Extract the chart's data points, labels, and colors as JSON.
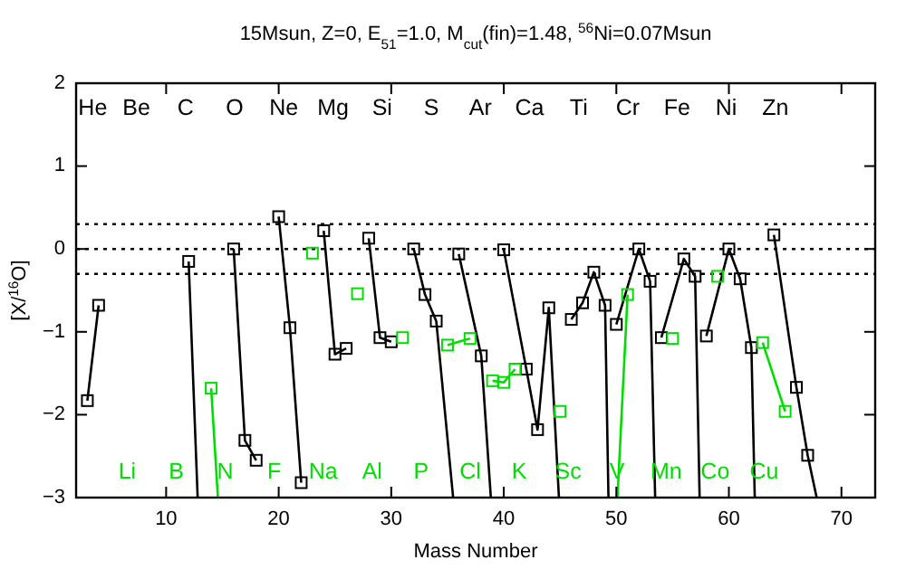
{
  "chart_data": {
    "type": "line",
    "title": "15Msun, Z=0, E$_{51}$=1.0, M$_{cut}$(fin)=1.48, $^{56}$Ni=0.07Msun",
    "xlabel": "Mass Number",
    "ylabel": "[X/$^{16}$O]",
    "xlim": [
      2,
      73
    ],
    "xticks": [
      10,
      20,
      30,
      40,
      50,
      60,
      70
    ],
    "ylim": [
      -3,
      2
    ],
    "yticks": [
      -3,
      -2,
      -1,
      0,
      1,
      2
    ],
    "ref_lines": [
      {
        "axis": "y",
        "value": 0.3,
        "line_style": "dotted",
        "color": "#000000"
      },
      {
        "axis": "y",
        "value": 0,
        "line_style": "dotted",
        "color": "#000000"
      },
      {
        "axis": "y",
        "value": -0.3,
        "line_style": "dotted",
        "color": "#000000"
      }
    ],
    "series": [
      {
        "marker": "none",
        "color": "#000000",
        "x": [
          3,
          4,
          null,
          12,
          12.8,
          null,
          16,
          17,
          18,
          null,
          20,
          21,
          22,
          null,
          24,
          25,
          26,
          null,
          28,
          29,
          30,
          null,
          32,
          33,
          34,
          35.5,
          null,
          36,
          38,
          38.85,
          null,
          40,
          42,
          43,
          44,
          44.9,
          null,
          46,
          47,
          48,
          49,
          49.3,
          null,
          50,
          52,
          53,
          53.45,
          null,
          54,
          56,
          57,
          57.4,
          null,
          58,
          60,
          61,
          62,
          62.3,
          null,
          64,
          66,
          67,
          67.8
        ],
        "values": [
          -1.83,
          -0.68,
          null,
          -0.15,
          -3,
          null,
          0,
          -2.31,
          -2.55,
          null,
          0.39,
          -0.95,
          -2.82,
          null,
          0.22,
          -1.27,
          -1.2,
          null,
          0.13,
          -1.07,
          -1.12,
          null,
          0,
          -0.55,
          -0.87,
          -3,
          null,
          -0.06,
          -1.29,
          -3,
          null,
          -0.01,
          -1.45,
          -2.18,
          -0.71,
          -3,
          null,
          -0.85,
          -0.65,
          -0.28,
          -0.68,
          -3,
          null,
          -0.91,
          0,
          -0.39,
          -3,
          null,
          -1.07,
          -0.12,
          -0.33,
          -3,
          null,
          -1.05,
          0,
          -0.36,
          -1.19,
          -3,
          null,
          0.17,
          -1.67,
          -2.49,
          -3
        ]
      },
      {
        "type": "scatter",
        "marker": "square",
        "color": "#000000",
        "x": [
          3,
          4,
          12,
          16,
          17,
          18,
          20,
          21,
          22,
          24,
          25,
          26,
          28,
          29,
          30,
          32,
          33,
          34,
          36,
          38,
          40,
          42,
          43,
          44,
          46,
          47,
          48,
          49,
          50,
          52,
          53,
          54,
          56,
          57,
          58,
          60,
          61,
          62,
          64,
          66,
          67
        ],
        "values": [
          -1.83,
          -0.68,
          -0.15,
          0,
          -2.31,
          -2.55,
          0.39,
          -0.95,
          -2.82,
          0.22,
          -1.27,
          -1.2,
          0.13,
          -1.07,
          -1.12,
          0,
          -0.55,
          -0.87,
          -0.06,
          -1.29,
          -0.01,
          -1.45,
          -2.18,
          -0.71,
          -0.85,
          -0.65,
          -0.28,
          -0.68,
          -0.91,
          0,
          -0.39,
          -1.07,
          -0.12,
          -0.33,
          -1.05,
          0,
          -0.36,
          -1.19,
          0.17,
          -1.67,
          -2.49
        ]
      },
      {
        "marker": "none",
        "color": "#00dd00",
        "x": [
          14,
          14.6,
          null,
          35,
          37,
          null,
          39,
          40,
          41,
          null,
          50.1,
          51,
          null,
          63,
          65
        ],
        "values": [
          -1.68,
          -3,
          null,
          -1.16,
          -1.08,
          null,
          -1.59,
          -1.61,
          -1.45,
          null,
          -3,
          -0.55,
          null,
          -1.13,
          -1.96
        ]
      },
      {
        "type": "scatter",
        "marker": "square",
        "color": "#00dd00",
        "x": [
          14,
          23,
          27,
          31,
          35,
          37,
          39,
          40,
          41,
          45,
          51,
          55,
          59,
          63,
          65
        ],
        "values": [
          -1.68,
          -0.05,
          -0.54,
          -1.07,
          -1.16,
          -1.08,
          -1.59,
          -1.61,
          -1.45,
          -1.96,
          -0.55,
          -1.08,
          -0.33,
          -1.13,
          -1.96
        ]
      }
    ],
    "annotations": [
      "He",
      "Li",
      "Be",
      "B",
      "C",
      "N",
      "O",
      "F",
      "Ne",
      "Na",
      "Mg",
      "Al",
      "Si",
      "P",
      "S",
      "Cl",
      "Ar",
      "K",
      "Ca",
      "Sc",
      "Ti",
      "V",
      "Cr",
      "Mn",
      "Fe",
      "Co",
      "Ni",
      "Cu",
      "Zn"
    ]
  }
}
